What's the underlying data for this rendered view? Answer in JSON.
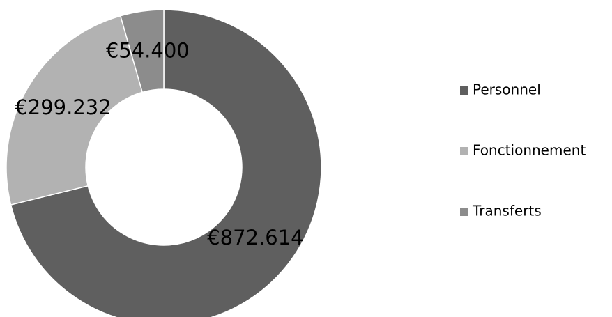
{
  "chart_data": {
    "type": "donut",
    "categories": [
      "Personnel",
      "Fonctionnement",
      "Transferts"
    ],
    "series": [
      {
        "values": [
          872614,
          299232,
          54400
        ],
        "value_labels": [
          "€872.614",
          "€299.232",
          "€54.400"
        ],
        "colors": [
          "#5f5f5f",
          "#b2b2b2",
          "#8c8c8c"
        ]
      }
    ],
    "legend": "right"
  }
}
